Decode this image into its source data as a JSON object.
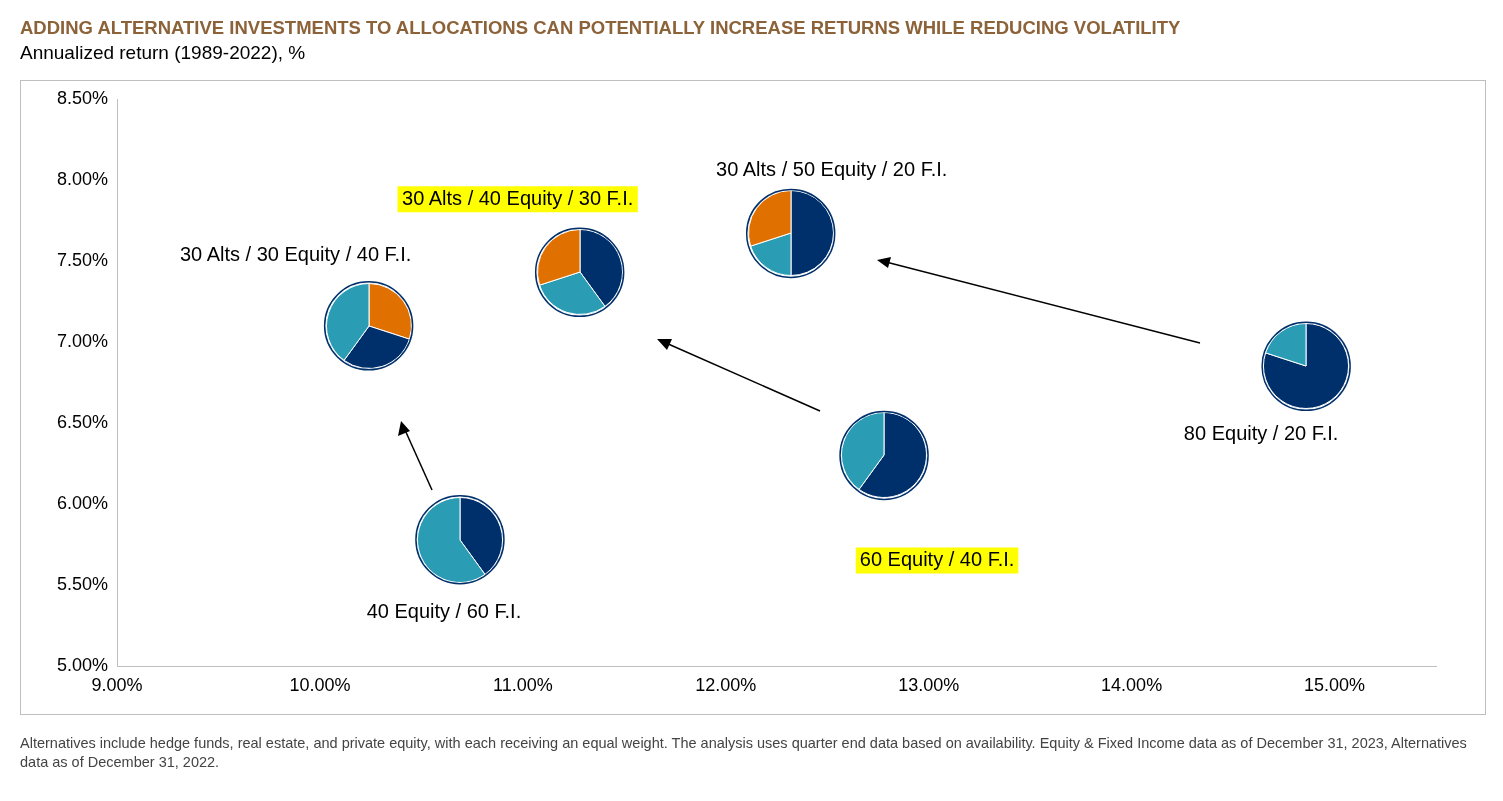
{
  "chart_data": [
    {
      "type": "scatter",
      "title": "ADDING ALTERNATIVE INVESTMENTS TO ALLOCATIONS CAN POTENTIALLY INCREASE RETURNS WHILE REDUCING VOLATILITY",
      "subtitle": "Annualized return (1989-2022), %",
      "marker": "circle",
      "legend": false,
      "grid": false,
      "xlim": [
        9,
        15.5
      ],
      "xticks": [
        {
          "value": 9,
          "label": "9.00%"
        },
        {
          "value": 10,
          "label": "10.00%"
        },
        {
          "value": 11,
          "label": "11.00%"
        },
        {
          "value": 12,
          "label": "12.00%"
        },
        {
          "value": 13,
          "label": "13.00%"
        },
        {
          "value": 14,
          "label": "14.00%"
        },
        {
          "value": 15,
          "label": "15.00%"
        }
      ],
      "ylim": [
        5,
        8.5
      ],
      "yticks": [
        {
          "value": 5,
          "label": "5.00%"
        },
        {
          "value": 5.5,
          "label": "5.50%"
        },
        {
          "value": 6,
          "label": "6.00%"
        },
        {
          "value": 6.5,
          "label": "6.50%"
        },
        {
          "value": 7,
          "label": "7.00%"
        },
        {
          "value": 7.5,
          "label": "7.50%"
        },
        {
          "value": 8,
          "label": "8.00%"
        },
        {
          "value": 8.5,
          "label": "8.50%"
        }
      ],
      "series": [
        {
          "name": "30 Alts / 30 Equity / 40 F.I.",
          "color": "#00306b",
          "x": [
            10.24
          ],
          "values": [
            7.1
          ]
        },
        {
          "name": "40 Equity / 60 F.I.",
          "color": "#00306b",
          "x": [
            10.69
          ],
          "values": [
            5.78
          ]
        },
        {
          "name": "30 Alts / 40 Equity / 30 F.I.",
          "color": "#00306b",
          "x": [
            11.28
          ],
          "values": [
            7.43
          ]
        },
        {
          "name": "30 Alts / 50 Equity / 20 F.I.",
          "color": "#00306b",
          "x": [
            12.32
          ],
          "values": [
            7.67
          ]
        },
        {
          "name": "60 Equity / 40 F.I.",
          "color": "#00306b",
          "x": [
            12.78
          ],
          "values": [
            6.3
          ]
        },
        {
          "name": "80 Equity / 20 F.I.",
          "color": "#00306b",
          "x": [
            14.86
          ],
          "values": [
            6.85
          ]
        }
      ],
      "annotations": [
        "Alternatives include hedge funds, real estate, and private equity, with each receiving an equal weight. The analysis uses quarter end data based on availability. Equity & Fixed Income data as of December 31, 2023, Alternatives data as of December 31, 2022."
      ]
    },
    {
      "type": "pie",
      "categories": [
        null,
        null,
        null
      ],
      "values": [
        30,
        30,
        40
      ],
      "colors": [
        "#e07000",
        "#00306b",
        "#2a9db5"
      ]
    },
    {
      "type": "pie",
      "categories": [
        null,
        null
      ],
      "values": [
        40,
        60
      ],
      "colors": [
        "#00306b",
        "#2a9db5"
      ]
    },
    {
      "type": "pie",
      "categories": [
        null,
        null,
        null
      ],
      "values": [
        40,
        30,
        30
      ],
      "colors": [
        "#00306b",
        "#2a9db5",
        "#e07000"
      ]
    },
    {
      "type": "pie",
      "categories": [
        null,
        null,
        null
      ],
      "values": [
        50,
        20,
        30
      ],
      "colors": [
        "#00306b",
        "#2a9db5",
        "#e07000"
      ]
    },
    {
      "type": "pie",
      "categories": [
        null,
        null
      ],
      "values": [
        60,
        40
      ],
      "colors": [
        "#00306b",
        "#2a9db5"
      ]
    },
    {
      "type": "pie",
      "categories": [
        null,
        null
      ],
      "values": [
        80,
        20
      ],
      "colors": [
        "#00306b",
        "#2a9db5"
      ]
    }
  ]
}
